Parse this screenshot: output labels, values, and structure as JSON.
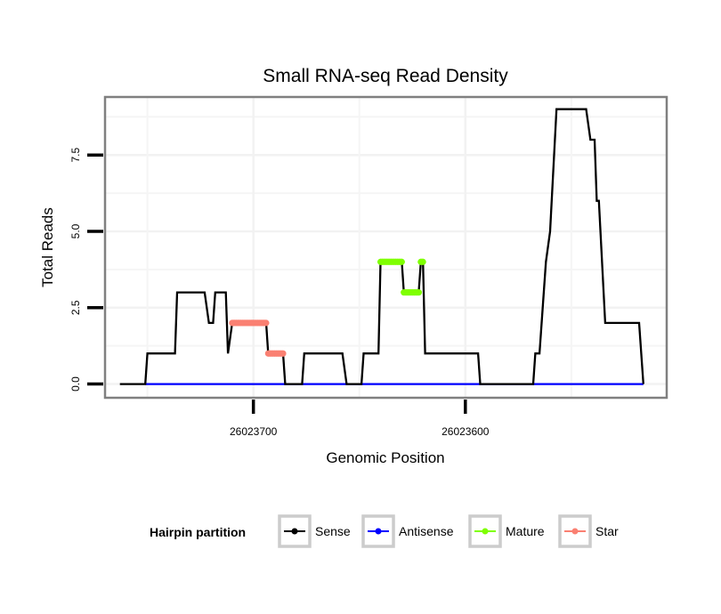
{
  "chart_data": {
    "type": "line",
    "title": "Small RNA-seq Read Density",
    "xlabel": "Genomic Position",
    "ylabel": "Total Reads",
    "x_reversed": true,
    "xlim": [
      26023770,
      26023505
    ],
    "ylim": [
      -0.45,
      9.4
    ],
    "x_ticks": [
      {
        "value": 26023700,
        "label": "26023700"
      },
      {
        "value": 26023600,
        "label": "26023600"
      }
    ],
    "y_ticks": [
      {
        "value": 0,
        "label": "0.0"
      },
      {
        "value": 2.5,
        "label": "2.5"
      },
      {
        "value": 5,
        "label": "5.0"
      },
      {
        "value": 7.5,
        "label": "7.5"
      }
    ],
    "grid": true,
    "legend": {
      "title": "Hairpin partition",
      "position": "bottom",
      "entries": [
        {
          "name": "Sense",
          "color": "#000000"
        },
        {
          "name": "Antisense",
          "color": "#0000ff"
        },
        {
          "name": "Mature",
          "color": "#7fff00"
        },
        {
          "name": "Star",
          "color": "#fa8072"
        }
      ]
    },
    "series": [
      {
        "name": "Sense",
        "color": "#000000",
        "style": "line",
        "x": [
          26023763,
          26023751,
          26023750,
          26023737,
          26023736,
          26023723,
          26023721,
          26023719,
          26023718,
          26023713,
          26023712,
          26023710,
          26023694,
          26023693,
          26023686,
          26023685,
          26023677,
          26023676,
          26023658,
          26023656,
          26023649,
          26023648,
          26023641,
          26023640,
          26023630,
          26023629,
          26023622,
          26023621,
          26023620,
          26023619,
          26023594,
          26023593,
          26023568,
          26023567,
          26023565,
          26023562,
          26023560,
          26023557,
          26023543,
          26023541,
          26023539,
          26023538,
          26023537,
          26023534,
          26023518,
          26023516
        ],
        "y": [
          0,
          0,
          1,
          1,
          3,
          3,
          2,
          2,
          3,
          3,
          1,
          2,
          2,
          1,
          1,
          0,
          0,
          1,
          1,
          0,
          0,
          1,
          1,
          4,
          4,
          3,
          3,
          4,
          4,
          1,
          1,
          0,
          0,
          1,
          1,
          4,
          5,
          9,
          9,
          8,
          8,
          6,
          6,
          2,
          2,
          0
        ]
      },
      {
        "name": "Antisense",
        "color": "#0000ff",
        "style": "line",
        "x": [
          26023751,
          26023516
        ],
        "y": [
          0,
          0
        ]
      },
      {
        "name": "Mature",
        "color": "#7fff00",
        "style": "points",
        "segments": [
          {
            "x": [
              26023640,
              26023630
            ],
            "y": 4
          },
          {
            "x": [
              26023629,
              26023622
            ],
            "y": 3
          },
          {
            "x": [
              26023621,
              26023620
            ],
            "y": 4
          }
        ]
      },
      {
        "name": "Star",
        "color": "#fa8072",
        "style": "points",
        "segments": [
          {
            "x": [
              26023710,
              26023694
            ],
            "y": 2
          },
          {
            "x": [
              26023693,
              26023686
            ],
            "y": 1
          }
        ]
      }
    ]
  }
}
